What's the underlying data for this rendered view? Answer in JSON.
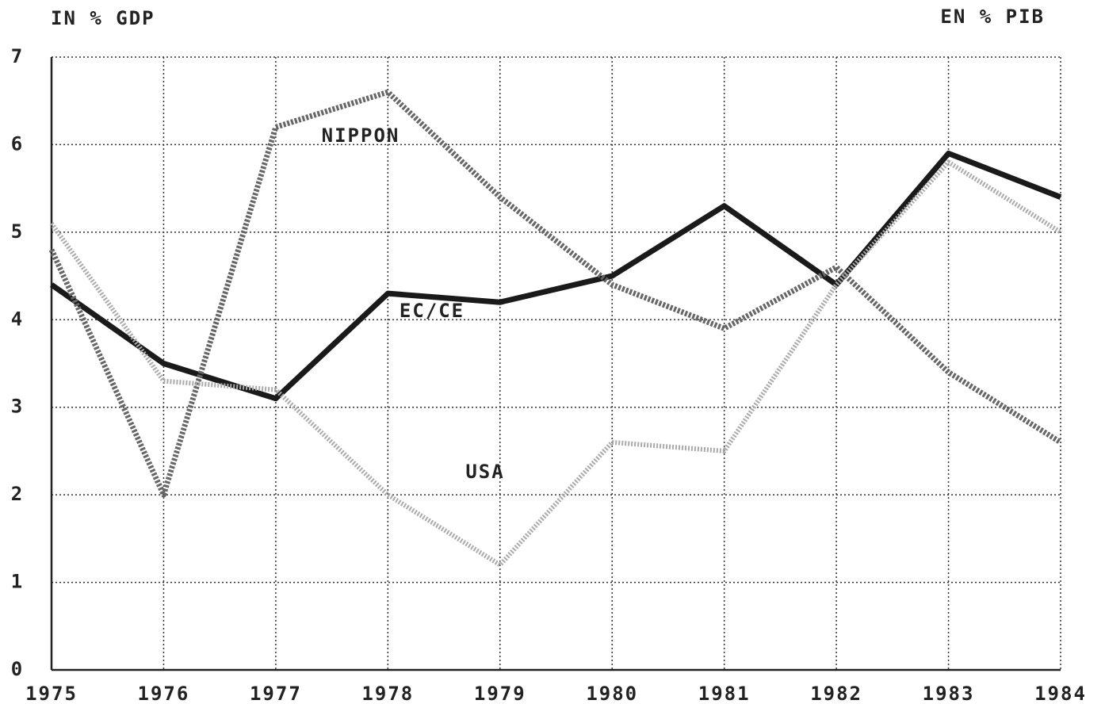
{
  "chart_data": {
    "type": "line",
    "y_label_left": "IN % GDP",
    "y_label_right": "EN % PIB",
    "x": [
      1975,
      1976,
      1977,
      1978,
      1979,
      1980,
      1981,
      1982,
      1983,
      1984
    ],
    "xlim": [
      1975,
      1984
    ],
    "xticks": [
      1975,
      1976,
      1977,
      1978,
      1979,
      1980,
      1981,
      1982,
      1983,
      1984
    ],
    "ylim": [
      0,
      7
    ],
    "yticks": [
      0,
      1,
      2,
      3,
      4,
      5,
      6,
      7
    ],
    "grid": true,
    "series": [
      {
        "name": "EC/CE",
        "color": "#1a1a1a",
        "values": [
          4.4,
          3.5,
          3.1,
          4.3,
          4.2,
          4.5,
          5.3,
          4.4,
          5.9,
          5.4
        ]
      },
      {
        "name": "NIPPON",
        "color": "#666666",
        "values": [
          4.8,
          2.0,
          6.2,
          6.6,
          5.4,
          4.4,
          3.9,
          4.6,
          3.4,
          2.6
        ]
      },
      {
        "name": "USA",
        "color": "#aaaaaa",
        "values": [
          5.1,
          3.3,
          3.2,
          2.0,
          1.2,
          2.6,
          2.5,
          4.4,
          5.8,
          5.0
        ]
      }
    ]
  }
}
